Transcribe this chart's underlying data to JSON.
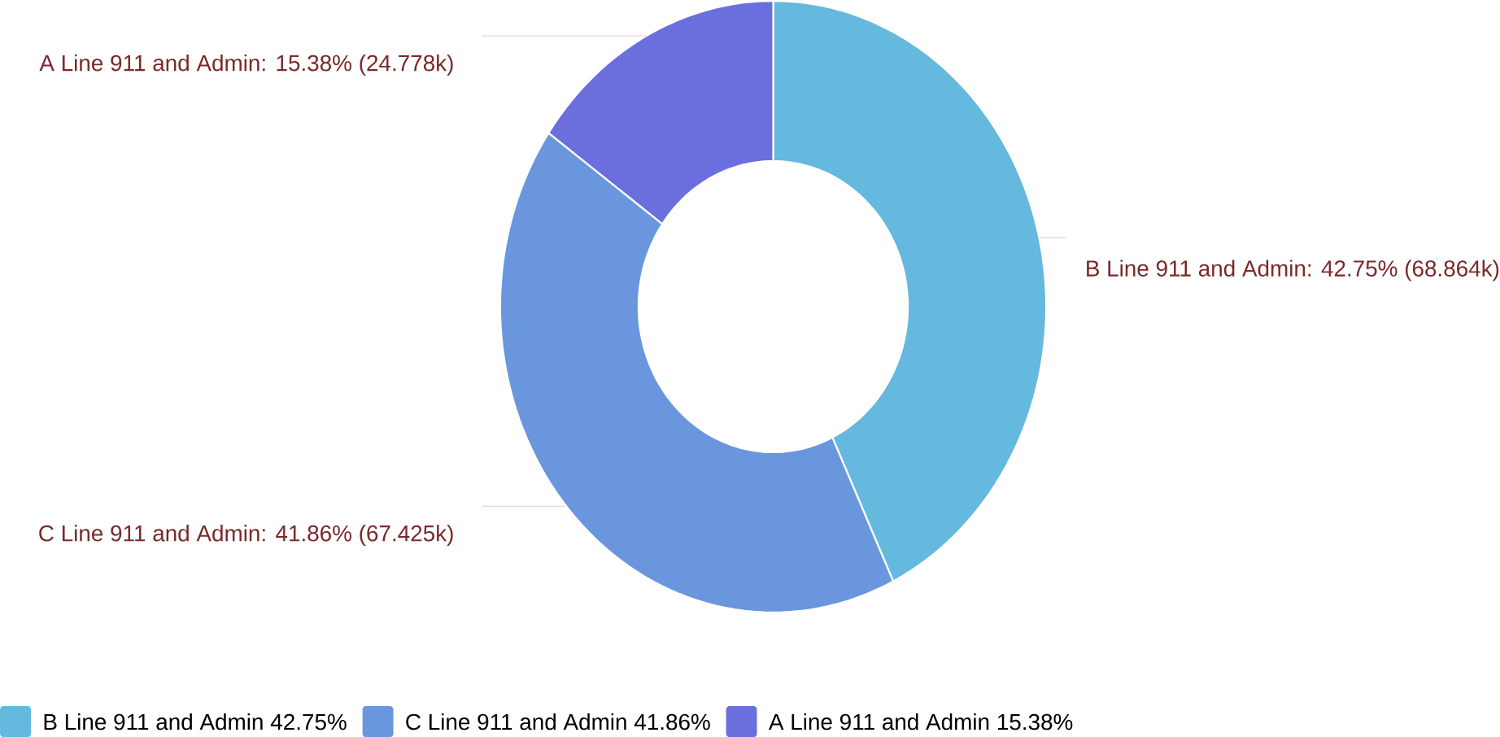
{
  "chart_data": {
    "type": "donut",
    "categories": [
      "B Line 911 and Admin",
      "C Line 911 and Admin",
      "A Line 911 and Admin"
    ],
    "values": [
      42.75,
      41.86,
      15.38
    ],
    "colors": [
      "#65b8de",
      "#6a96dd",
      "#6a6fdd"
    ],
    "value_labels": [
      "42.75%",
      "41.86%",
      "15.38%"
    ],
    "annotations": [
      "B Line 911 and Admin: 42.75% (68.864k)",
      "C Line 911 and Admin: 41.86% (67.425k)",
      "A Line 911 and Admin: 15.38% (24.778k)"
    ],
    "legend": "bottom"
  }
}
